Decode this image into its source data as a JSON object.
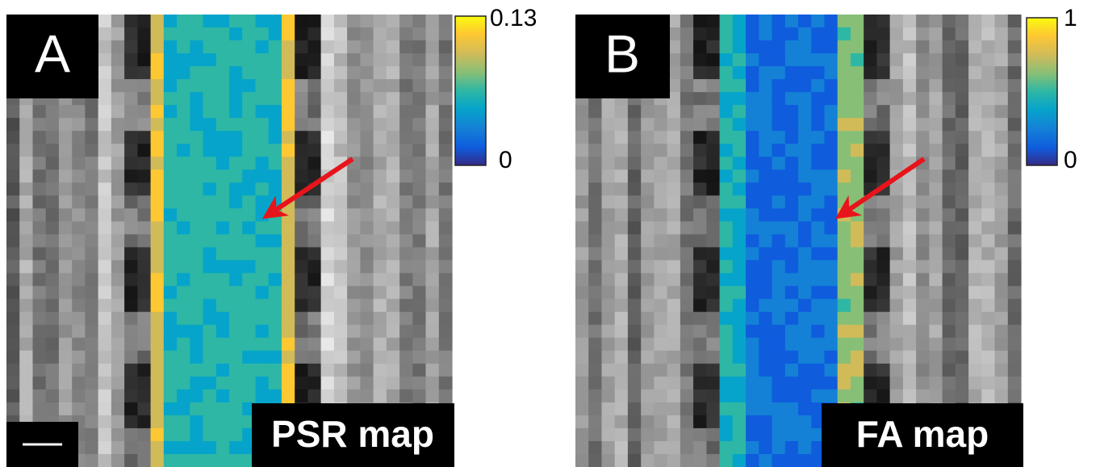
{
  "panels": [
    {
      "label": "A",
      "map_label": "PSR map",
      "colorbar": {
        "max": 0.13,
        "min": 0
      }
    },
    {
      "label": "B",
      "map_label": "FA map",
      "colorbar": {
        "max": 1,
        "min": 0
      }
    }
  ]
}
